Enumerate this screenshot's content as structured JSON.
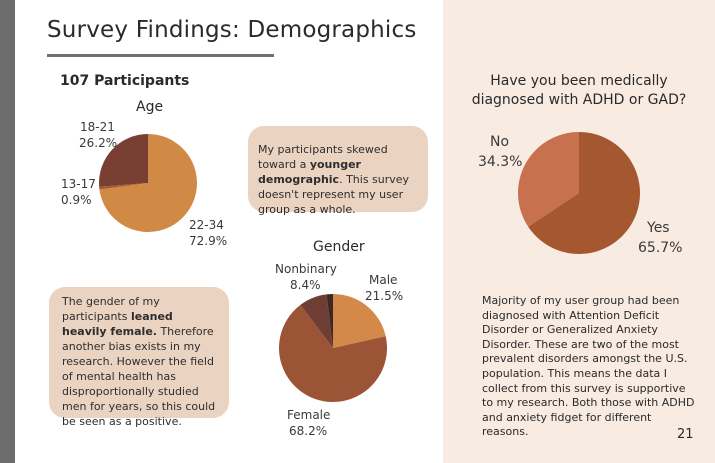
{
  "slide": {
    "title": "Survey Findings: Demographics",
    "participants": "107 Participants",
    "page_number": "21"
  },
  "callouts": {
    "age": {
      "pre": "My participants skewed toward a ",
      "bold": "younger demographic",
      "post": ". This survey doesn't represent my user group as a whole."
    },
    "gender": {
      "pre": "The gender of my participants ",
      "bold": "leaned heavily female.",
      "post": " Therefore another bias exists in my research. However the field of mental health has disproportionally studied men for years, so this could be seen as a positive."
    },
    "adhd": "Majority of my user group had been diagnosed with Attention Deficit Disorder or Generalized Anxiety Disorder. These are two of the most prevalent disorders amongst the U.S. population. This means the data I collect from this survey is supportive to my research. Both those with ADHD and anxiety fidget for different reasons."
  },
  "colors": {
    "left_bar": "#6d6d6d",
    "right_panel": "#f7ebe2",
    "callout_bg": "#ebd3c2"
  },
  "chart_data": [
    {
      "type": "pie",
      "title": "Age",
      "slices": [
        {
          "label": "22-34",
          "value": 72.9,
          "pct": "72.9%",
          "color": "#d08a45"
        },
        {
          "label": "13-17",
          "value": 0.9,
          "pct": "0.9%",
          "color": "#a05a33"
        },
        {
          "label": "18-21",
          "value": 26.2,
          "pct": "26.2%",
          "color": "#7a3f33"
        }
      ]
    },
    {
      "type": "pie",
      "title": "Gender",
      "slices": [
        {
          "label": "Male",
          "value": 21.5,
          "pct": "21.5%",
          "color": "#d4894a"
        },
        {
          "label": "Female",
          "value": 68.2,
          "pct": "68.2%",
          "color": "#9c5436"
        },
        {
          "label": "Nonbinary",
          "value": 8.4,
          "pct": "8.4%",
          "color": "#6e3e34"
        },
        {
          "label": "",
          "value": 1.9,
          "pct": "",
          "color": "#3e2825"
        }
      ]
    },
    {
      "type": "pie",
      "title": "Have you been medically diagnosed with ADHD or GAD?",
      "slices": [
        {
          "label": "Yes",
          "value": 65.7,
          "pct": "65.7%",
          "color": "#a5572f"
        },
        {
          "label": "No",
          "value": 34.3,
          "pct": "34.3%",
          "color": "#c8714f"
        }
      ]
    }
  ]
}
